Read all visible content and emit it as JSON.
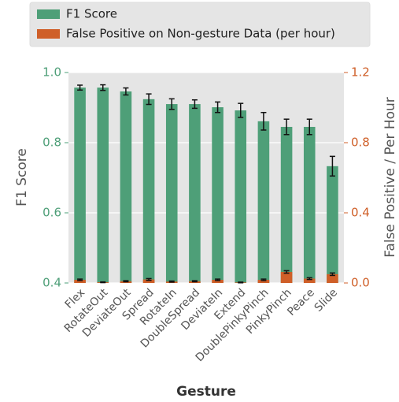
{
  "chart_data": {
    "type": "bar",
    "categories": [
      "Flex",
      "RotateOut",
      "DeviateOut",
      "Spread",
      "RotateIn",
      "DoubleSpread",
      "DeviateIn",
      "Extend",
      "DoublePinkyPinch",
      "PinkyPinch",
      "Peace",
      "Slide"
    ],
    "series": [
      {
        "name": "F1 Score",
        "color": "#4e9f78",
        "values": [
          0.957,
          0.957,
          0.946,
          0.924,
          0.91,
          0.91,
          0.901,
          0.892,
          0.861,
          0.845,
          0.845,
          0.733
        ],
        "errors": [
          0.007,
          0.008,
          0.01,
          0.015,
          0.015,
          0.012,
          0.015,
          0.02,
          0.025,
          0.022,
          0.022,
          0.028
        ]
      },
      {
        "name": "False Positive on Non-gesture Data (per hour)",
        "color": "#cf5f28",
        "axis": "y2",
        "values": [
          0.018,
          0.004,
          0.01,
          0.02,
          0.008,
          0.01,
          0.018,
          0.003,
          0.018,
          0.063,
          0.025,
          0.05
        ],
        "errors": [
          0.004,
          0.002,
          0.003,
          0.005,
          0.003,
          0.003,
          0.004,
          0.002,
          0.004,
          0.007,
          0.005,
          0.007
        ]
      }
    ],
    "xlabel": "Gesture",
    "ylabel": "F1 Score",
    "y2label": "False Positive / Per Hour",
    "ylim": [
      0.4,
      1.0
    ],
    "yticks": [
      0.4,
      0.6,
      0.8,
      {
        "value": 1.0,
        "label": "1.0"
      }
    ],
    "y2lim": [
      0,
      1.2
    ],
    "y2ticks": [
      {
        "value": 0,
        "label": "0.0"
      },
      0.4,
      0.8,
      1.2
    ],
    "grid": true,
    "legend": "top-left"
  }
}
